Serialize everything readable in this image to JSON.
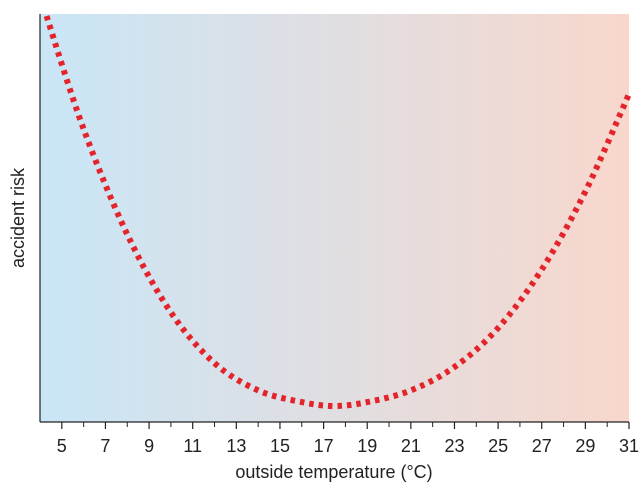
{
  "chart_data": {
    "type": "line",
    "title": "",
    "xlabel": "outside temperature (°C)",
    "ylabel": "accident risk",
    "xlim": [
      4,
      31
    ],
    "xticks": [
      5,
      7,
      9,
      11,
      13,
      15,
      17,
      19,
      21,
      23,
      25,
      27,
      29,
      31
    ],
    "xtick_labels": [
      "5",
      "7",
      "9",
      "11",
      "13",
      "15",
      "17",
      "19",
      "21",
      "23",
      "25",
      "27",
      "29",
      "31"
    ],
    "y_values_shown": false,
    "grid": false,
    "background_gradient": {
      "cold": "#c9e6f7",
      "warm": "#f8d7cc"
    },
    "series": [
      {
        "style": "dotted",
        "color": "#e3242b",
        "points": [
          [
            4.3,
            1.0
          ],
          [
            6,
            0.71
          ],
          [
            8,
            0.44
          ],
          [
            10,
            0.24
          ],
          [
            12,
            0.11
          ],
          [
            14,
            0.04
          ],
          [
            16,
            0.01
          ],
          [
            17.5,
            0.0
          ],
          [
            19,
            0.01
          ],
          [
            21,
            0.04
          ],
          [
            23,
            0.1
          ],
          [
            25,
            0.2
          ],
          [
            27,
            0.35
          ],
          [
            29,
            0.55
          ],
          [
            31,
            0.8
          ]
        ]
      }
    ]
  }
}
